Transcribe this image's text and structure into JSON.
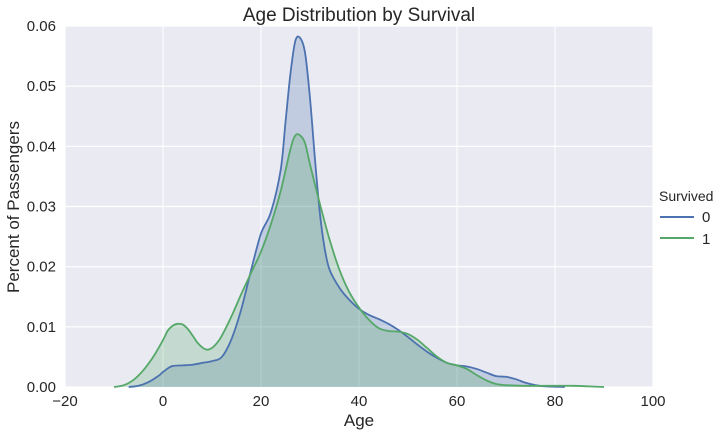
{
  "chart_data": {
    "type": "area",
    "title": "Age Distribution by Survival",
    "xlabel": "Age",
    "ylabel": "Percent of Passengers",
    "xlim": [
      -20,
      100
    ],
    "ylim": [
      0,
      0.06
    ],
    "xticks": [
      -20,
      0,
      20,
      40,
      60,
      80,
      100
    ],
    "yticks": [
      0.0,
      0.01,
      0.02,
      0.03,
      0.04,
      0.05,
      0.06
    ],
    "xtick_labels": [
      "−20",
      "0",
      "20",
      "40",
      "60",
      "80",
      "100"
    ],
    "ytick_labels": [
      "0.00",
      "0.01",
      "0.02",
      "0.03",
      "0.04",
      "0.05",
      "0.06"
    ],
    "grid": true,
    "background": "#eaeaf2",
    "legend": {
      "title": "Survived",
      "placement": "right"
    },
    "series": [
      {
        "name": "0",
        "color": "#4c72b0",
        "fill": "#4c72b0",
        "points": [
          [
            -7,
            0.0
          ],
          [
            -5,
            0.0002
          ],
          [
            -3,
            0.0008
          ],
          [
            -1,
            0.0018
          ],
          [
            0,
            0.0025
          ],
          [
            1,
            0.0031
          ],
          [
            2,
            0.0035
          ],
          [
            4,
            0.0036
          ],
          [
            6,
            0.0037
          ],
          [
            8,
            0.004
          ],
          [
            10,
            0.0043
          ],
          [
            12,
            0.005
          ],
          [
            14,
            0.008
          ],
          [
            16,
            0.013
          ],
          [
            18,
            0.0195
          ],
          [
            20,
            0.0255
          ],
          [
            22,
            0.029
          ],
          [
            24,
            0.036
          ],
          [
            25,
            0.044
          ],
          [
            26,
            0.052
          ],
          [
            27,
            0.0575
          ],
          [
            28,
            0.058
          ],
          [
            29,
            0.0555
          ],
          [
            30,
            0.048
          ],
          [
            31,
            0.038
          ],
          [
            32,
            0.029
          ],
          [
            33,
            0.023
          ],
          [
            34,
            0.0195
          ],
          [
            36,
            0.0165
          ],
          [
            38,
            0.0145
          ],
          [
            40,
            0.013
          ],
          [
            42,
            0.012
          ],
          [
            44,
            0.0113
          ],
          [
            46,
            0.0105
          ],
          [
            48,
            0.0095
          ],
          [
            50,
            0.0083
          ],
          [
            52,
            0.007
          ],
          [
            54,
            0.0058
          ],
          [
            56,
            0.0048
          ],
          [
            58,
            0.004
          ],
          [
            60,
            0.0036
          ],
          [
            62,
            0.0034
          ],
          [
            64,
            0.003
          ],
          [
            66,
            0.0024
          ],
          [
            68,
            0.0018
          ],
          [
            70,
            0.0017
          ],
          [
            72,
            0.0013
          ],
          [
            74,
            0.0007
          ],
          [
            76,
            0.0003
          ],
          [
            78,
            0.0001
          ],
          [
            82,
            0.0
          ]
        ]
      },
      {
        "name": "1",
        "color": "#55a868",
        "fill": "#55a868",
        "points": [
          [
            -10,
            0.0
          ],
          [
            -8,
            0.0003
          ],
          [
            -6,
            0.0012
          ],
          [
            -4,
            0.0028
          ],
          [
            -2,
            0.005
          ],
          [
            0,
            0.0078
          ],
          [
            1,
            0.0094
          ],
          [
            2,
            0.0102
          ],
          [
            3,
            0.0105
          ],
          [
            4,
            0.0104
          ],
          [
            5,
            0.0097
          ],
          [
            6,
            0.0086
          ],
          [
            7,
            0.0074
          ],
          [
            8,
            0.0066
          ],
          [
            9,
            0.0062
          ],
          [
            10,
            0.0065
          ],
          [
            11,
            0.0073
          ],
          [
            12,
            0.0085
          ],
          [
            14,
            0.0118
          ],
          [
            16,
            0.0155
          ],
          [
            18,
            0.019
          ],
          [
            20,
            0.0225
          ],
          [
            22,
            0.027
          ],
          [
            24,
            0.0325
          ],
          [
            26,
            0.0395
          ],
          [
            27,
            0.0418
          ],
          [
            28,
            0.0418
          ],
          [
            29,
            0.0405
          ],
          [
            30,
            0.037
          ],
          [
            32,
            0.0305
          ],
          [
            34,
            0.0245
          ],
          [
            36,
            0.0195
          ],
          [
            38,
            0.0158
          ],
          [
            40,
            0.0132
          ],
          [
            42,
            0.0112
          ],
          [
            44,
            0.0098
          ],
          [
            46,
            0.0093
          ],
          [
            48,
            0.0092
          ],
          [
            50,
            0.0088
          ],
          [
            52,
            0.0078
          ],
          [
            54,
            0.0064
          ],
          [
            56,
            0.005
          ],
          [
            58,
            0.004
          ],
          [
            60,
            0.0036
          ],
          [
            62,
            0.003
          ],
          [
            64,
            0.002
          ],
          [
            66,
            0.0011
          ],
          [
            68,
            0.0005
          ],
          [
            70,
            0.0003
          ],
          [
            74,
            0.0002
          ],
          [
            80,
            0.0002
          ],
          [
            84,
            0.0002
          ],
          [
            87,
            0.0001
          ],
          [
            90,
            0.0
          ]
        ]
      }
    ]
  }
}
